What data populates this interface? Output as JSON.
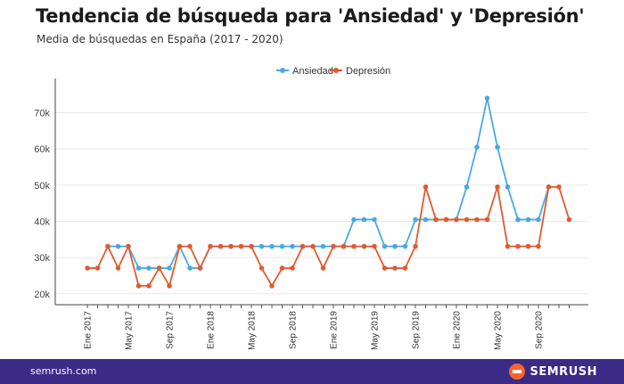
{
  "title": "Tendencia de búsqueda para 'Ansiedad' y 'Depresión'",
  "subtitle": "Media de búsquedas en España (2017 - 2020)",
  "footer": {
    "url": "semrush.com",
    "brand": "SEMRUSH",
    "brand_icon": "semrush-flame-icon"
  },
  "colors": {
    "ansiedad": "#4aa8e0",
    "depresion": "#e05a32",
    "footer_bg": "#3b2a86",
    "brand": "#ff642d"
  },
  "chart_data": {
    "type": "line",
    "title": "Tendencia de búsqueda para 'Ansiedad' y 'Depresión'",
    "subtitle": "Media de búsquedas en España (2017 - 2020)",
    "ylim": [
      17000,
      77000
    ],
    "yticks": [
      20000,
      30000,
      40000,
      50000,
      60000,
      70000
    ],
    "ytick_labels": [
      "20k",
      "30k",
      "40k",
      "50k",
      "60k",
      "70k"
    ],
    "x": [
      "Ene 2017",
      "Feb 2017",
      "Mar 2017",
      "Abr 2017",
      "May 2017",
      "Jun 2017",
      "Jul 2017",
      "Ago 2017",
      "Sep 2017",
      "Oct 2017",
      "Nov 2017",
      "Dic 2017",
      "Ene 2018",
      "Feb 2018",
      "Mar 2018",
      "Abr 2018",
      "May 2018",
      "Jun 2018",
      "Jul 2018",
      "Ago 2018",
      "Sep 2018",
      "Oct 2018",
      "Nov 2018",
      "Dic 2018",
      "Ene 2019",
      "Feb 2019",
      "Mar 2019",
      "Abr 2019",
      "May 2019",
      "Jun 2019",
      "Jul 2019",
      "Ago 2019",
      "Sep 2019",
      "Oct 2019",
      "Nov 2019",
      "Dic 2019",
      "Ene 2020",
      "Feb 2020",
      "Mar 2020",
      "Abr 2020",
      "May 2020",
      "Jun 2020",
      "Jul 2020",
      "Ago 2020",
      "Sep 2020",
      "Oct 2020",
      "Nov 2020",
      "Dic 2020"
    ],
    "xtick_labels": [
      "Ene 2017",
      "May 2017",
      "Sep 2017",
      "Ene 2018",
      "May 2018",
      "Sep 2018",
      "Ene 2019",
      "May 2019",
      "Sep 2019",
      "Ene 2020",
      "May 2020",
      "Sep 2020"
    ],
    "legend_position": "top-center",
    "grid": true,
    "series": [
      {
        "name": "Ansiedad",
        "color": "#4aa8e0",
        "values": [
          null,
          null,
          33100,
          33100,
          33100,
          27100,
          27100,
          27100,
          27100,
          33100,
          27100,
          27100,
          33100,
          33100,
          33100,
          33100,
          33100,
          33100,
          33100,
          33100,
          33100,
          33100,
          33100,
          33100,
          33100,
          33100,
          40500,
          40500,
          40500,
          33100,
          33100,
          33100,
          40500,
          40500,
          40500,
          40500,
          40500,
          49500,
          60500,
          74000,
          60500,
          49500,
          40500,
          40500,
          40500,
          49500,
          null,
          null
        ]
      },
      {
        "name": "Depresión",
        "color": "#e05a32",
        "values": [
          27100,
          27100,
          33100,
          27100,
          33100,
          22200,
          22200,
          27100,
          22200,
          33100,
          33100,
          27100,
          33100,
          33100,
          33100,
          33100,
          33100,
          27100,
          22200,
          27100,
          27100,
          33100,
          33100,
          27100,
          33100,
          33100,
          33100,
          33100,
          33100,
          27100,
          27100,
          27100,
          33100,
          49500,
          40500,
          40500,
          40500,
          40500,
          40500,
          40500,
          49500,
          33100,
          33100,
          33100,
          33100,
          49500,
          49500,
          40500
        ]
      }
    ]
  }
}
